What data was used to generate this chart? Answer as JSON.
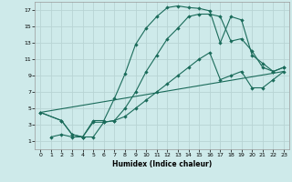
{
  "xlabel": "Humidex (Indice chaleur)",
  "bg_color": "#ceeaea",
  "grid_color": "#b8d4d4",
  "line_color": "#1a6b5a",
  "xlim": [
    -0.5,
    23.5
  ],
  "ylim": [
    0,
    18
  ],
  "xticks": [
    0,
    1,
    2,
    3,
    4,
    5,
    6,
    7,
    8,
    9,
    10,
    11,
    12,
    13,
    14,
    15,
    16,
    17,
    18,
    19,
    20,
    21,
    22,
    23
  ],
  "yticks": [
    1,
    3,
    5,
    7,
    9,
    11,
    13,
    15,
    17
  ],
  "series1_x": [
    1,
    2,
    3,
    4,
    5,
    6,
    7,
    8,
    9,
    10,
    11,
    12,
    13,
    14,
    15,
    16,
    17,
    18,
    19,
    20,
    21,
    22,
    23
  ],
  "series1_y": [
    1.5,
    1.8,
    1.5,
    1.5,
    3.5,
    3.5,
    6.2,
    9.2,
    12.8,
    14.8,
    16.2,
    17.3,
    17.5,
    17.3,
    17.2,
    16.9,
    13.0,
    16.2,
    15.8,
    11.5,
    10.5,
    9.5,
    10.0
  ],
  "series2_x": [
    0,
    2,
    3,
    4,
    5,
    6,
    7,
    8,
    9,
    10,
    11,
    12,
    13,
    14,
    15,
    16,
    17,
    18,
    19,
    20,
    21,
    22,
    23
  ],
  "series2_y": [
    4.5,
    3.5,
    1.8,
    1.5,
    3.3,
    3.3,
    3.5,
    5.0,
    7.0,
    9.5,
    11.5,
    13.5,
    14.8,
    16.2,
    16.5,
    16.5,
    16.2,
    13.2,
    13.5,
    12.0,
    10.0,
    9.5,
    10.0
  ],
  "series3_x": [
    0,
    2,
    3,
    4,
    5,
    6,
    7,
    8,
    9,
    10,
    11,
    12,
    13,
    14,
    15,
    16,
    17,
    18,
    19,
    20,
    21,
    22,
    23
  ],
  "series3_y": [
    4.5,
    3.5,
    1.8,
    1.5,
    1.5,
    3.3,
    3.5,
    4.0,
    5.0,
    6.0,
    7.0,
    8.0,
    9.0,
    10.0,
    11.0,
    11.8,
    8.5,
    9.0,
    9.5,
    7.5,
    7.5,
    8.5,
    9.5
  ],
  "series4_x": [
    0,
    23
  ],
  "series4_y": [
    4.5,
    9.5
  ]
}
